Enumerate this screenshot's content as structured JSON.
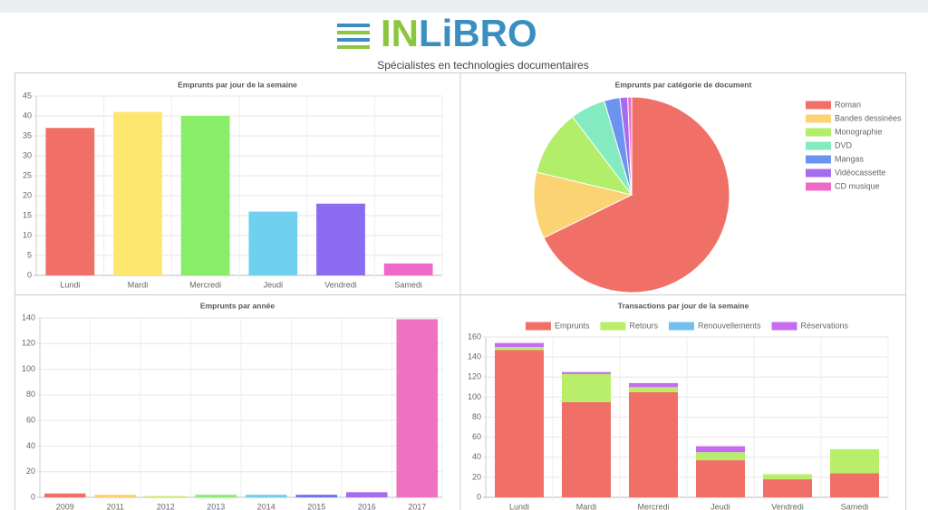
{
  "header": {
    "logo": [
      "IN",
      "LiBRO"
    ],
    "tagline": "Spécialistes en technologies documentaires"
  },
  "chart_data": [
    {
      "type": "bar",
      "title": "Emprunts par jour de la semaine",
      "categories": [
        "Lundi",
        "Mardi",
        "Mercredi",
        "Jeudi",
        "Vendredi",
        "Samedi"
      ],
      "values": [
        37,
        41,
        40,
        16,
        18,
        3
      ],
      "colors": [
        "#f07067",
        "#fde76e",
        "#88ee6a",
        "#70d0ef",
        "#8b6cf0",
        "#ee69c9"
      ],
      "ylim": [
        0,
        45
      ],
      "yticks": [
        0,
        5,
        10,
        15,
        20,
        25,
        30,
        35,
        40,
        45
      ],
      "grid": true
    },
    {
      "type": "pie",
      "title": "Emprunts par catégorie de document",
      "categories": [
        "Roman",
        "Bandes dessinées",
        "Monographie",
        "DVD",
        "Mangas",
        "Vidéocassette",
        "CD musique"
      ],
      "values": [
        105,
        17,
        17,
        9,
        4,
        2,
        1
      ],
      "colors": [
        "#f07067",
        "#fbd373",
        "#b2ee6a",
        "#84ebc0",
        "#6b94f0",
        "#a56cf0",
        "#ee69c9"
      ],
      "legend": "right"
    },
    {
      "type": "bar",
      "title": "Emprunts par année",
      "categories": [
        "2009",
        "2011",
        "2012",
        "2013",
        "2014",
        "2015",
        "2016",
        "2017"
      ],
      "values": [
        3,
        2,
        1,
        2,
        2,
        2,
        4,
        139
      ],
      "colors": [
        "#f07067",
        "#fbd373",
        "#c8ee6a",
        "#88ee6a",
        "#70d0ef",
        "#6b74f0",
        "#a56cf0",
        "#ee72c0"
      ],
      "ylim": [
        0,
        140
      ],
      "yticks": [
        0,
        20,
        40,
        60,
        80,
        100,
        120,
        140
      ],
      "grid": true
    },
    {
      "type": "stacked_bar",
      "title": "Transactions par jour de la semaine",
      "categories": [
        "Lundi",
        "Mardi",
        "Mercredi",
        "Jeudi",
        "Vendredi",
        "Samedi"
      ],
      "series": [
        {
          "name": "Emprunts",
          "color": "#f07067",
          "values": [
            147,
            95,
            105,
            37,
            18,
            24
          ]
        },
        {
          "name": "Retours",
          "color": "#b8ee6a",
          "values": [
            3,
            28,
            5,
            8,
            5,
            24
          ]
        },
        {
          "name": "Renouvellements",
          "color": "#70c0ef",
          "values": [
            0,
            0,
            0,
            0,
            0,
            0
          ]
        },
        {
          "name": "Réservations",
          "color": "#c66cf0",
          "values": [
            4,
            2,
            4,
            6,
            0,
            0
          ]
        }
      ],
      "ylim": [
        0,
        160
      ],
      "yticks": [
        0,
        20,
        40,
        60,
        80,
        100,
        120,
        140,
        160
      ],
      "grid": true,
      "legend": "top"
    }
  ]
}
